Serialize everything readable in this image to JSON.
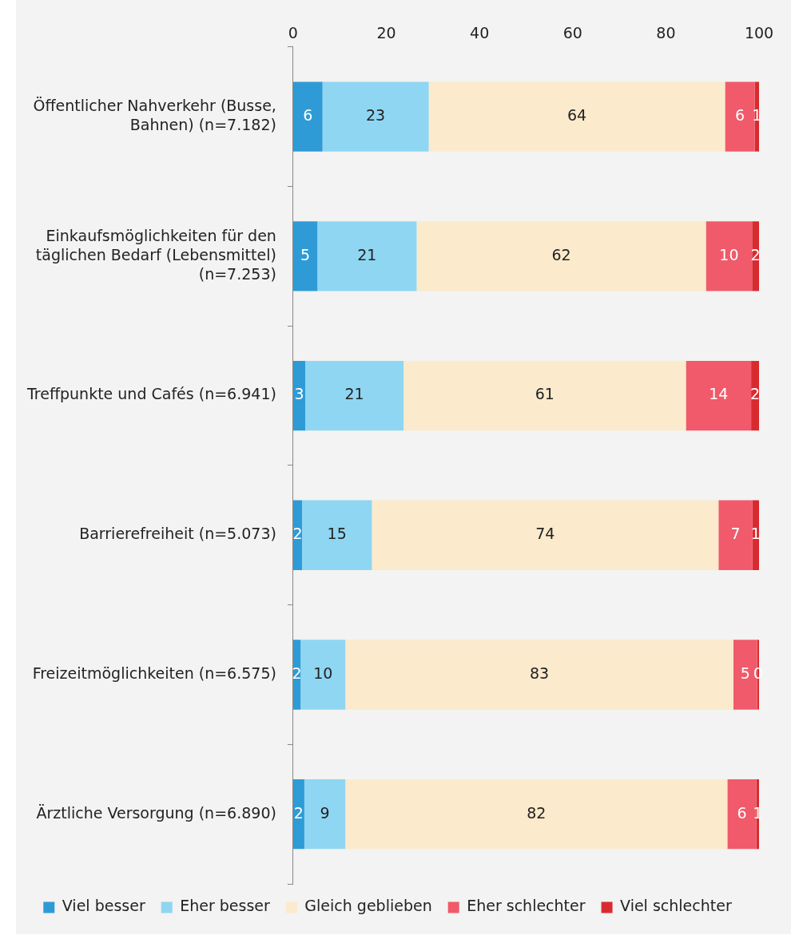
{
  "chart_data": {
    "type": "bar",
    "orientation": "horizontal",
    "stacked": true,
    "data_labels": true,
    "grid": false,
    "legend": "bottom",
    "categories": [
      "Öffentlicher Nahverkehr (Busse, Bahnen) (n=7.182)",
      "Einkaufsmöglichkeiten für den täglichen Bedarf (Lebensmittel) (n=7.253)",
      "Treffpunkte und Cafés (n=6.941)",
      "Barrierefreiheit (n=5.073)",
      "Freizeitmöglichkeiten (n=6.575)",
      "Ärztliche Versorgung (n=6.890)"
    ],
    "xlim": [
      0,
      100
    ],
    "xticks": [
      0,
      20,
      40,
      60,
      80,
      100
    ],
    "series": [
      {
        "name": "Viel besser",
        "color": "#2e9bd6",
        "values": [
          6.3,
          5.2,
          2.6,
          1.9,
          1.6,
          2.4
        ],
        "value_labels": [
          "6",
          "5",
          "3",
          "2",
          "2",
          "2"
        ]
      },
      {
        "name": "Eher besser",
        "color": "#8fd6f2",
        "values": [
          22.8,
          21.3,
          21.1,
          15.0,
          9.6,
          8.8
        ],
        "value_labels": [
          "23",
          "21",
          "21",
          "15",
          "10",
          "9"
        ]
      },
      {
        "name": "Gleich geblieben",
        "color": "#fbeacb",
        "values": [
          63.6,
          62.1,
          60.6,
          74.4,
          83.3,
          82.0
        ],
        "value_labels": [
          "64",
          "62",
          "61",
          "74",
          "83",
          "82"
        ]
      },
      {
        "name": "Eher schlechter",
        "color": "#f05a6a",
        "values": [
          6.4,
          9.9,
          14.0,
          7.3,
          5.1,
          6.2
        ],
        "value_labels": [
          "6",
          "10",
          "14",
          "7",
          "5",
          "6"
        ]
      },
      {
        "name": "Viel schlechter",
        "color": "#d92b2f",
        "values": [
          0.9,
          1.5,
          1.7,
          1.4,
          0.4,
          0.6
        ],
        "value_labels": [
          "1",
          "2",
          "2",
          "1",
          "0",
          "1"
        ]
      }
    ]
  }
}
